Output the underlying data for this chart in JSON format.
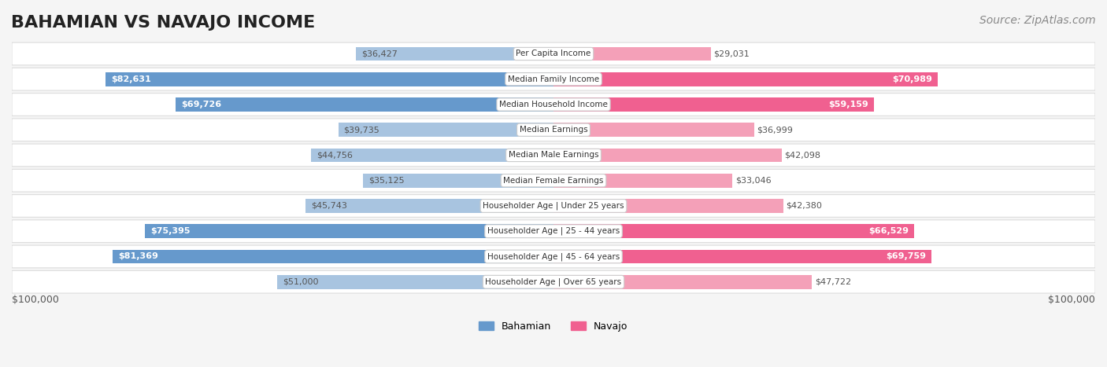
{
  "title": "BAHAMIAN VS NAVAJO INCOME",
  "source": "Source: ZipAtlas.com",
  "categories": [
    "Per Capita Income",
    "Median Family Income",
    "Median Household Income",
    "Median Earnings",
    "Median Male Earnings",
    "Median Female Earnings",
    "Householder Age | Under 25 years",
    "Householder Age | 25 - 44 years",
    "Householder Age | 45 - 64 years",
    "Householder Age | Over 65 years"
  ],
  "bahamian_values": [
    36427,
    82631,
    69726,
    39735,
    44756,
    35125,
    45743,
    75395,
    81369,
    51000
  ],
  "navajo_values": [
    29031,
    70989,
    59159,
    36999,
    42098,
    33046,
    42380,
    66529,
    69759,
    47722
  ],
  "bahamian_labels": [
    "$36,427",
    "$82,631",
    "$69,726",
    "$39,735",
    "$44,756",
    "$35,125",
    "$45,743",
    "$75,395",
    "$81,369",
    "$51,000"
  ],
  "navajo_labels": [
    "$29,031",
    "$70,989",
    "$59,159",
    "$36,999",
    "$42,098",
    "$33,046",
    "$42,380",
    "$66,529",
    "$69,759",
    "$47,722"
  ],
  "max_value": 100000,
  "bahamian_color_light": "#a8c4e0",
  "bahamian_color_dark": "#6699cc",
  "navajo_color_light": "#f4a0b8",
  "navajo_color_dark": "#f06090",
  "bg_color": "#f5f5f5",
  "row_bg": "#ffffff",
  "row_border": "#dddddd",
  "xlabel_left": "$100,000",
  "xlabel_right": "$100,000",
  "legend_bahamian": "Bahamian",
  "legend_navajo": "Navajo",
  "title_fontsize": 16,
  "source_fontsize": 10
}
